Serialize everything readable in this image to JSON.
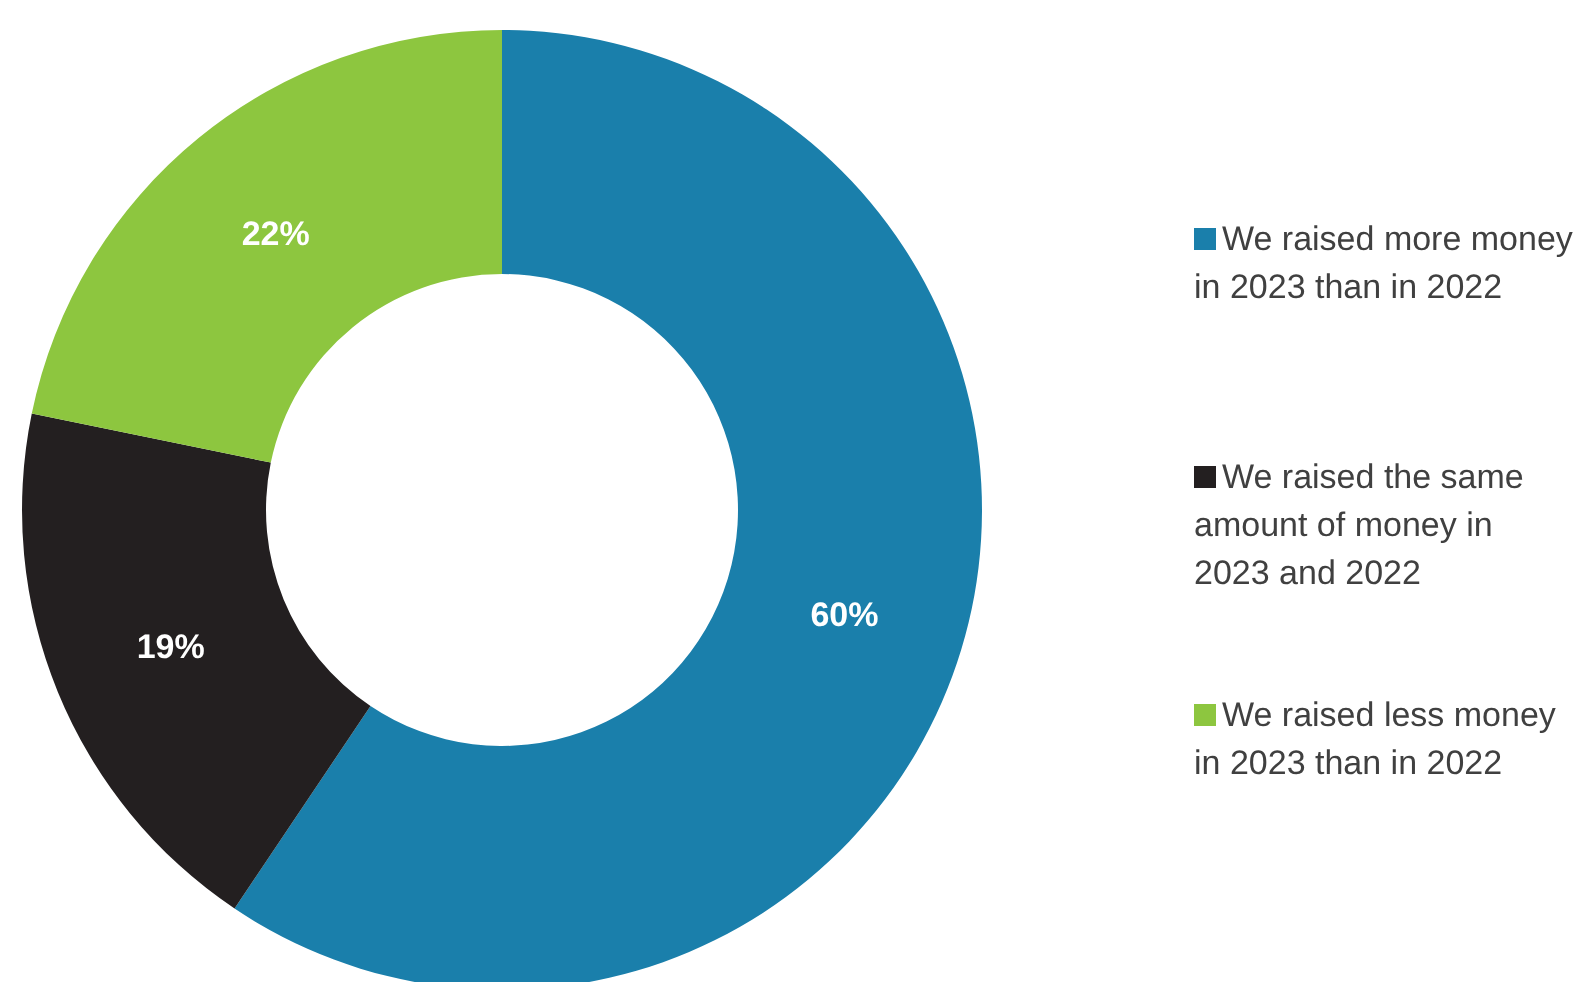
{
  "chart_data": {
    "type": "donut",
    "categories": [
      "We raised more money in 2023 than in 2022",
      "We raised the same amount of money in 2023 and 2022",
      "We raised less money in 2023 than in 2022"
    ],
    "values": [
      60,
      19,
      22
    ],
    "colors": [
      "#1a7fab",
      "#231f20",
      "#8dc63f"
    ],
    "value_labels": [
      "60%",
      "19%",
      "22%"
    ],
    "legend": "right"
  }
}
